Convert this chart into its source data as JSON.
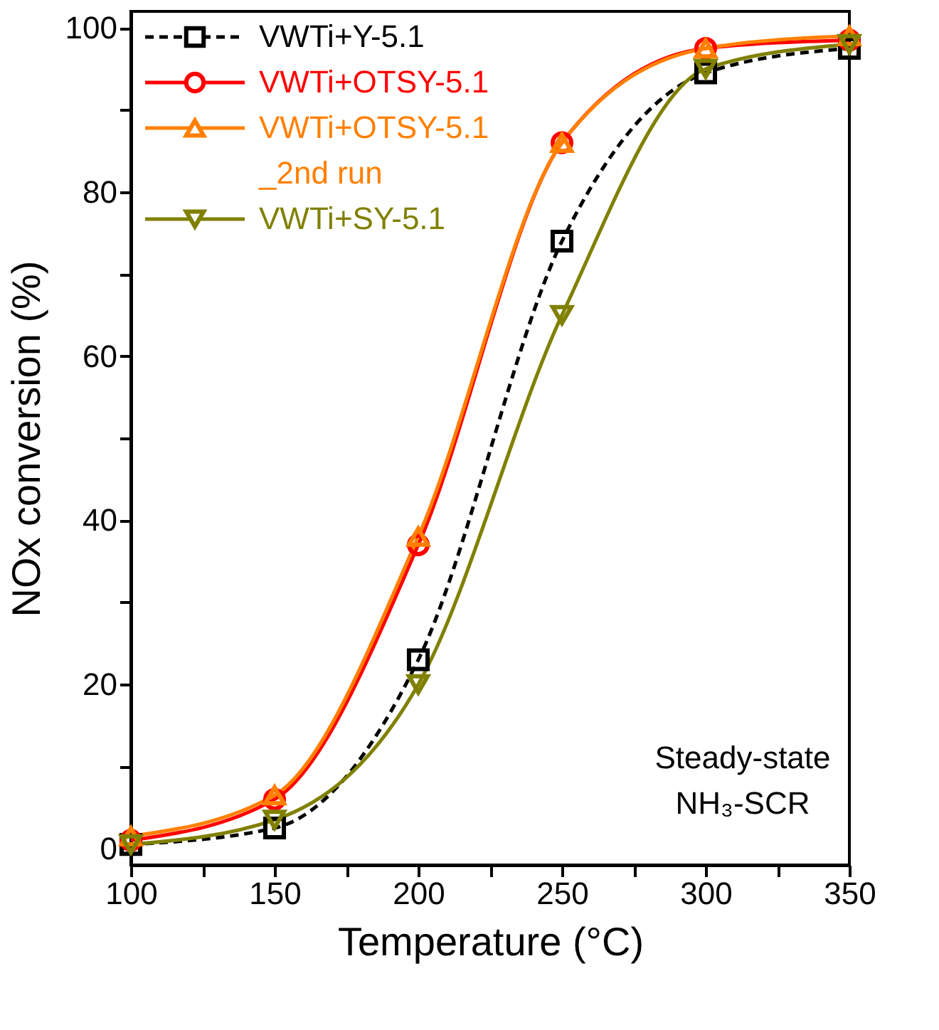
{
  "chart_data": {
    "type": "line",
    "xlabel": "Temperature (°C)",
    "ylabel": "NOx conversion (%)",
    "x": [
      100,
      150,
      200,
      250,
      300,
      350
    ],
    "series": [
      {
        "name": "VWTi+Y-5.1",
        "color": "#000000",
        "marker": "square",
        "line_style": "dashed",
        "values": [
          0.5,
          2.5,
          23,
          74,
          94.5,
          97.5
        ]
      },
      {
        "name": "VWTi+OTSY-5.1",
        "color": "#ff0000",
        "marker": "circle",
        "line_style": "solid",
        "values": [
          1,
          6,
          37,
          86,
          97.5,
          98.5
        ]
      },
      {
        "name": "VWTi+OTSY-5.1 _2nd run",
        "color": "#ff8000",
        "marker": "triangle",
        "line_style": "solid",
        "values": [
          1.5,
          6.5,
          38,
          86,
          97.5,
          99
        ]
      },
      {
        "name": "VWTi+SY-5.1",
        "color": "#808000",
        "marker": "triangle-down",
        "line_style": "solid",
        "values": [
          0.5,
          3.5,
          20,
          65,
          95,
          98
        ]
      }
    ],
    "xlim": [
      100,
      350
    ],
    "xticks": [
      100,
      {
        "value": 125,
        "label": null
      },
      150,
      {
        "value": 175,
        "label": null
      },
      200,
      {
        "value": 225,
        "label": null
      },
      250,
      {
        "value": 275,
        "label": null
      },
      300,
      {
        "value": 325,
        "label": null
      },
      350
    ],
    "ylim": [
      -2,
      102
    ],
    "yticks": [
      0,
      {
        "value": 10,
        "label": null
      },
      20,
      {
        "value": 30,
        "label": null
      },
      40,
      {
        "value": 50,
        "label": null
      },
      60,
      {
        "value": 70,
        "label": null
      },
      80,
      {
        "value": 90,
        "label": null
      },
      100
    ],
    "annotations": [
      "Steady-state\nNH₃-SCR"
    ],
    "legend": "top left",
    "grid": false
  }
}
